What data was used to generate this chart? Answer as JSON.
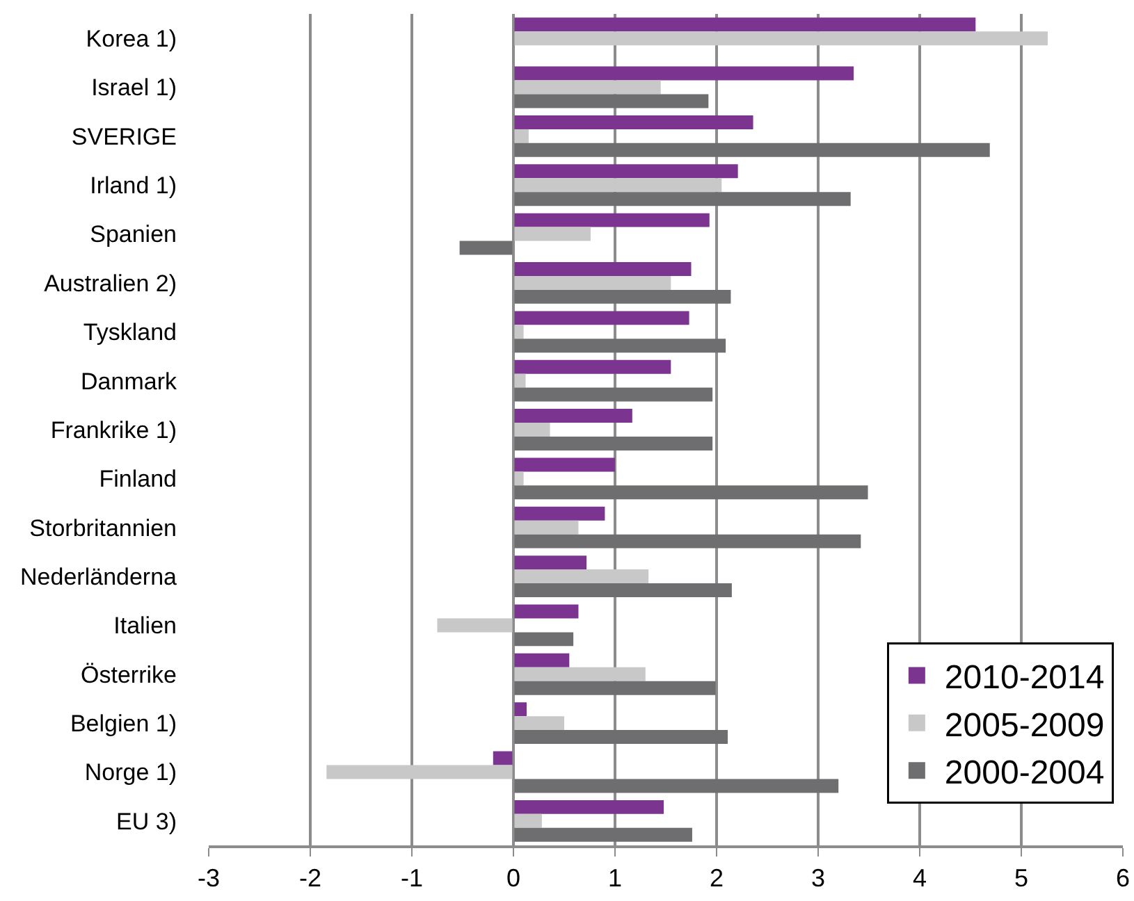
{
  "chart_data": {
    "type": "bar",
    "orientation": "horizontal",
    "categories": [
      "Korea 1)",
      "Israel 1)",
      "SVERIGE",
      "Irland 1)",
      "Spanien",
      "Australien 2)",
      "Tyskland",
      "Danmark",
      "Frankrike 1)",
      "Finland",
      "Storbritannien",
      "Nederländerna",
      "Italien",
      "Österrike",
      "Belgien 1)",
      "Norge 1)",
      "EU 3)"
    ],
    "series": [
      {
        "name": "2010-2014",
        "color": "#7b3590",
        "values": [
          4.55,
          3.35,
          2.36,
          2.21,
          1.93,
          1.75,
          1.73,
          1.55,
          1.17,
          1.0,
          0.9,
          0.72,
          0.64,
          0.55,
          0.13,
          -0.2,
          1.48
        ]
      },
      {
        "name": "2005-2009",
        "color": "#c8c8c8",
        "values": [
          5.26,
          1.45,
          0.15,
          2.05,
          0.76,
          1.55,
          0.1,
          0.12,
          0.36,
          0.1,
          0.64,
          1.33,
          -0.75,
          1.3,
          0.5,
          -1.84,
          0.28
        ]
      },
      {
        "name": "2000-2004",
        "color": "#6e6e70",
        "values": [
          null,
          1.92,
          4.69,
          3.32,
          -0.53,
          2.14,
          2.09,
          1.96,
          1.96,
          3.49,
          3.42,
          2.15,
          0.59,
          1.99,
          2.11,
          3.2,
          1.76
        ]
      }
    ],
    "xlim": [
      -3,
      6
    ],
    "xticks": [
      -3,
      -2,
      -1,
      0,
      1,
      2,
      3,
      4,
      5,
      6
    ],
    "grid": "x",
    "legend": "bottom right"
  }
}
